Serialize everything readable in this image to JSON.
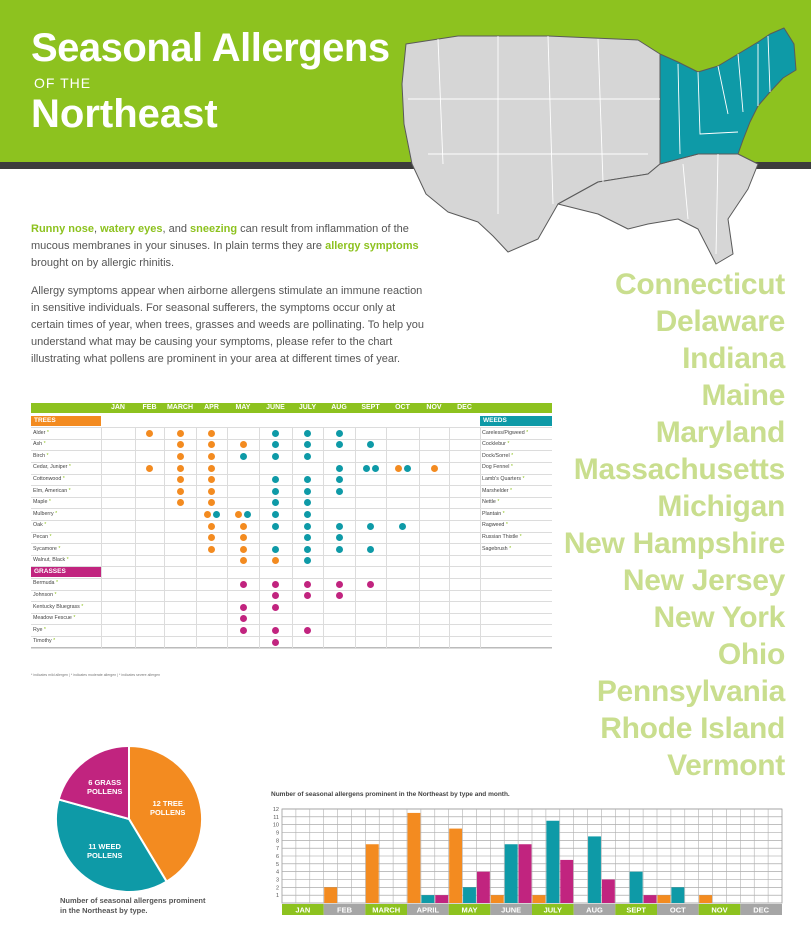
{
  "header": {
    "title_line1": "Seasonal Allergens",
    "title_line2": "OF THE",
    "title_line3": "Northeast"
  },
  "intro": {
    "p1_a": "Runny nose",
    "p1_b": ", ",
    "p1_c": "watery eyes",
    "p1_d": ", and ",
    "p1_e": "sneezing",
    "p1_f": " can result from inflammation of the mucous membranes in your sinuses. In plain terms they are ",
    "p1_g": "allergy symptoms",
    "p1_h": " brought on by allergic rhinitis.",
    "p2": "Allergy symptoms appear when airborne allergens stimulate an immune reaction in sensitive individuals. For seasonal sufferers, the symptoms occur only at certain times of year, when trees, grasses and weeds are pollinating. To help you understand what may be causing your symptoms, please refer to the chart illustrating what pollens are prominent in your area at different times of year."
  },
  "states": [
    "Connecticut",
    "Delaware",
    "Indiana",
    "Maine",
    "Maryland",
    "Massachusetts",
    "Michigan",
    "New Hampshire",
    "New Jersey",
    "New York",
    "Ohio",
    "Pennsylvania",
    "Rhode Island",
    "Vermont"
  ],
  "colors": {
    "green": "#8dc21f",
    "orange": "#f38b20",
    "teal": "#0e9aa7",
    "magenta": "#c1247f",
    "state_text": "#c9de8e"
  },
  "pollen_table": {
    "months": [
      "JAN",
      "FEB",
      "MARCH",
      "APR",
      "MAY",
      "JUNE",
      "JULY",
      "AUG",
      "SEPT",
      "OCT",
      "NOV",
      "DEC"
    ],
    "trees_label": "TREES",
    "weeds_label": "WEEDS",
    "grasses_label": "GRASSES",
    "trees": [
      {
        "name": "Alder",
        "mark": "*",
        "months": [
          [
            "FEB",
            "orange"
          ],
          [
            "MARCH",
            "orange"
          ],
          [
            "APR",
            "orange"
          ],
          [
            "JUNE",
            "teal"
          ],
          [
            "JULY",
            "teal"
          ],
          [
            "AUG",
            "teal"
          ]
        ]
      },
      {
        "name": "Ash",
        "mark": "*",
        "months": [
          [
            "MARCH",
            "orange"
          ],
          [
            "APR",
            "orange"
          ],
          [
            "MAY",
            "orange"
          ],
          [
            "JUNE",
            "teal"
          ],
          [
            "JULY",
            "teal"
          ],
          [
            "AUG",
            "teal"
          ],
          [
            "SEPT",
            "teal"
          ]
        ]
      },
      {
        "name": "Birch",
        "mark": "*",
        "months": [
          [
            "MARCH",
            "orange"
          ],
          [
            "APR",
            "orange"
          ],
          [
            "MAY",
            "teal"
          ],
          [
            "JUNE",
            "teal"
          ],
          [
            "JULY",
            "teal"
          ]
        ]
      },
      {
        "name": "Cedar, Juniper",
        "mark": "*",
        "months": [
          [
            "FEB",
            "orange"
          ],
          [
            "MARCH",
            "orange"
          ],
          [
            "APR",
            "orange"
          ],
          [
            "AUG",
            "teal"
          ],
          [
            "SEPT",
            "teal",
            "teal"
          ],
          [
            "OCT",
            "orange",
            "teal"
          ],
          [
            "NOV",
            "orange"
          ]
        ]
      },
      {
        "name": "Cottonwood",
        "mark": "*",
        "months": [
          [
            "MARCH",
            "orange"
          ],
          [
            "APR",
            "orange"
          ],
          [
            "JUNE",
            "teal"
          ],
          [
            "JULY",
            "teal"
          ],
          [
            "AUG",
            "teal"
          ]
        ]
      },
      {
        "name": "Elm, American",
        "mark": "*",
        "months": [
          [
            "MARCH",
            "orange"
          ],
          [
            "APR",
            "orange"
          ],
          [
            "JUNE",
            "teal"
          ],
          [
            "JULY",
            "teal"
          ],
          [
            "AUG",
            "teal"
          ]
        ]
      },
      {
        "name": "Maple",
        "mark": "*",
        "months": [
          [
            "MARCH",
            "orange"
          ],
          [
            "APR",
            "orange"
          ],
          [
            "JUNE",
            "teal"
          ],
          [
            "JULY",
            "teal"
          ]
        ]
      },
      {
        "name": "Mulberry",
        "mark": "*",
        "months": [
          [
            "APR",
            "orange",
            "teal"
          ],
          [
            "MAY",
            "orange",
            "teal"
          ],
          [
            "JUNE",
            "teal"
          ],
          [
            "JULY",
            "teal"
          ]
        ]
      },
      {
        "name": "Oak",
        "mark": "*",
        "months": [
          [
            "APR",
            "orange"
          ],
          [
            "MAY",
            "orange"
          ],
          [
            "JUNE",
            "teal"
          ],
          [
            "JULY",
            "teal"
          ],
          [
            "AUG",
            "teal"
          ],
          [
            "SEPT",
            "teal"
          ],
          [
            "OCT",
            "teal"
          ]
        ]
      },
      {
        "name": "Pecan",
        "mark": "*",
        "months": [
          [
            "APR",
            "orange"
          ],
          [
            "MAY",
            "orange"
          ],
          [
            "JULY",
            "teal"
          ],
          [
            "AUG",
            "teal"
          ]
        ]
      },
      {
        "name": "Sycamore",
        "mark": "*",
        "months": [
          [
            "APR",
            "orange"
          ],
          [
            "MAY",
            "orange"
          ],
          [
            "JUNE",
            "teal"
          ],
          [
            "JULY",
            "teal"
          ],
          [
            "AUG",
            "teal"
          ],
          [
            "SEPT",
            "teal"
          ]
        ]
      },
      {
        "name": "Walnut, Black",
        "mark": "*",
        "months": [
          [
            "MAY",
            "orange"
          ],
          [
            "JUNE",
            "orange"
          ],
          [
            "JULY",
            "teal"
          ]
        ]
      }
    ],
    "grasses": [
      {
        "name": "Bermuda",
        "mark": "*",
        "months": [
          [
            "MAY",
            "magenta"
          ],
          [
            "JUNE",
            "magenta"
          ],
          [
            "JULY",
            "magenta"
          ],
          [
            "AUG",
            "magenta"
          ],
          [
            "SEPT",
            "magenta"
          ]
        ]
      },
      {
        "name": "Johnson",
        "mark": "*",
        "months": [
          [
            "JUNE",
            "magenta"
          ],
          [
            "JULY",
            "magenta"
          ],
          [
            "AUG",
            "magenta"
          ]
        ]
      },
      {
        "name": "Kentucky Bluegrass",
        "mark": "*",
        "months": [
          [
            "MAY",
            "magenta"
          ],
          [
            "JUNE",
            "magenta"
          ]
        ]
      },
      {
        "name": "Meadow Fescue",
        "mark": "*",
        "months": [
          [
            "MAY",
            "magenta"
          ]
        ]
      },
      {
        "name": "Rye",
        "mark": "*",
        "months": [
          [
            "MAY",
            "magenta"
          ],
          [
            "JUNE",
            "magenta"
          ],
          [
            "JULY",
            "magenta"
          ]
        ]
      },
      {
        "name": "Timothy",
        "mark": "*",
        "months": [
          [
            "JUNE",
            "magenta"
          ]
        ]
      }
    ],
    "weeds": [
      {
        "name": "Careless/Pigweed",
        "mark": "*"
      },
      {
        "name": "Cocklebur",
        "mark": "*"
      },
      {
        "name": "Dock/Sorrel",
        "mark": "*"
      },
      {
        "name": "Dog Fennel",
        "mark": "*"
      },
      {
        "name": "Lamb's Quarters",
        "mark": "*"
      },
      {
        "name": "Marshelder",
        "mark": "*"
      },
      {
        "name": "Nettle",
        "mark": "*"
      },
      {
        "name": "Plantain",
        "mark": "*"
      },
      {
        "name": "Ragweed",
        "mark": "*"
      },
      {
        "name": "Russian Thistle",
        "mark": "*"
      },
      {
        "name": "Sagebrush",
        "mark": "*"
      }
    ],
    "legend_note": "* indicates mild allergen  |  * indicates moderate allergen  |  * indicates severe allergen"
  },
  "chart_data": [
    {
      "type": "pie",
      "title": "Number of seasonal allergens prominent in the Northeast by type.",
      "slices": [
        {
          "label": "12 TREE POLLENS",
          "value": 12,
          "color": "#f38b20"
        },
        {
          "label": "11 WEED POLLENS",
          "value": 11,
          "color": "#0e9aa7"
        },
        {
          "label": "6 GRASS POLLENS",
          "value": 6,
          "color": "#c1247f"
        }
      ]
    },
    {
      "type": "bar",
      "title": "Number of seasonal allergens prominent in the Northeast by type and month.",
      "categories": [
        "JAN",
        "FEB",
        "MARCH",
        "APRIL",
        "MAY",
        "JUNE",
        "JULY",
        "AUG",
        "SEPT",
        "OCT",
        "NOV",
        "DEC"
      ],
      "ylim": [
        0,
        12
      ],
      "yticks": [
        1,
        2,
        3,
        4,
        5,
        6,
        7,
        8,
        9,
        10,
        11,
        12
      ],
      "series": [
        {
          "color": "#f38b20",
          "values": [
            0,
            2,
            7.5,
            11.5,
            9.5,
            1,
            1,
            0,
            0,
            1,
            1,
            0
          ]
        },
        {
          "color": "#0e9aa7",
          "values": [
            0,
            0,
            0,
            1,
            2,
            7.5,
            10.5,
            8.5,
            4,
            2,
            0,
            0
          ]
        },
        {
          "color": "#c1247f",
          "values": [
            0,
            0,
            0,
            1,
            4,
            7.5,
            5.5,
            3,
            1,
            0,
            0,
            0
          ]
        }
      ]
    }
  ]
}
